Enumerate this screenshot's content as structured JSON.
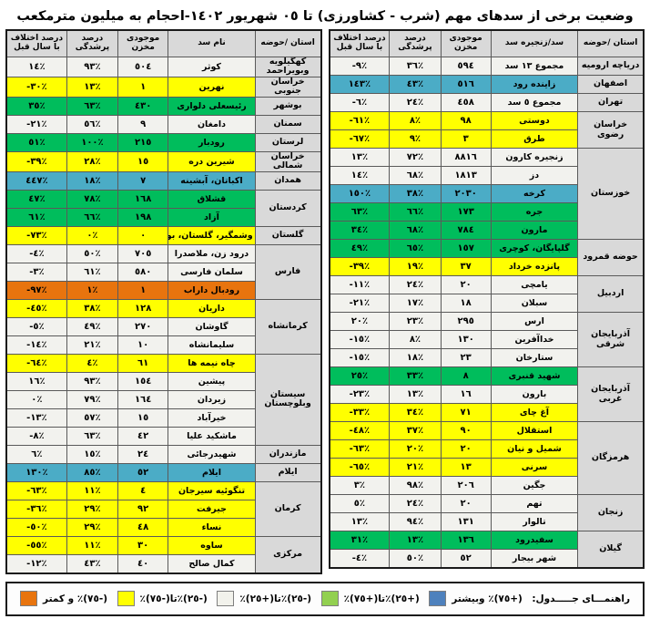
{
  "title": "وضعیت برخی از سدهای مهم (شرب - کشاورزی) تا ٠٥ شهریور ١٤٠٢-احجام به میلیون مترمکعب",
  "colors": {
    "header": "#d9d9d9",
    "white": "#f2f2ee",
    "yellow": "#ffff00",
    "green": "#00bd5c",
    "blue": "#4bacc6",
    "orange": "#e8740e"
  },
  "right_table": {
    "headers": [
      "استان /حوضه",
      "سد/زنجیره سد",
      "موجودی مخزن",
      "درصد پرشدگی",
      "درصد اختلاف با سال قبل"
    ],
    "groups": [
      {
        "province": "دریاچه ارومیه",
        "rows": [
          {
            "dam": "مجموع ١٣ سد",
            "stock": "٥٩٤",
            "fill": "٣٦٪",
            "diff": "-٩٪",
            "cat": "white"
          }
        ]
      },
      {
        "province": "اصفهان",
        "rows": [
          {
            "dam": "زاینده رود",
            "stock": "٥١٦",
            "fill": "٤٣٪",
            "diff": "١٤٣٪",
            "cat": "blue"
          }
        ]
      },
      {
        "province": "تهران",
        "rows": [
          {
            "dam": "مجموع ٥ سد",
            "stock": "٤٥٨",
            "fill": "٢٤٪",
            "diff": "-٦٪",
            "cat": "white"
          }
        ]
      },
      {
        "province": "خراسان رضوی",
        "rows": [
          {
            "dam": "دوستی",
            "stock": "٩٨",
            "fill": "٨٪",
            "diff": "-٦١٪",
            "cat": "yellow"
          },
          {
            "dam": "طرق",
            "stock": "٣",
            "fill": "٩٪",
            "diff": "-٦٧٪",
            "cat": "yellow"
          }
        ]
      },
      {
        "province": "خوزستان",
        "rows": [
          {
            "dam": "زنجیره کارون",
            "stock": "٨٨١٦",
            "fill": "٧٢٪",
            "diff": "١٣٪",
            "cat": "white"
          },
          {
            "dam": "دز",
            "stock": "١٨١٣",
            "fill": "٦٨٪",
            "diff": "١٤٪",
            "cat": "white"
          },
          {
            "dam": "کرخه",
            "stock": "٢٠٣٠",
            "fill": "٣٨٪",
            "diff": "١٥٠٪",
            "cat": "blue"
          },
          {
            "dam": "جره",
            "stock": "١٧٣",
            "fill": "٦٦٪",
            "diff": "٦٣٪",
            "cat": "green"
          },
          {
            "dam": "مارون",
            "stock": "٧٨٤",
            "fill": "٦٨٪",
            "diff": "٣٤٪",
            "cat": "green"
          }
        ]
      },
      {
        "province": "حوضه قمرود",
        "rows": [
          {
            "dam": "گلپایگان، کوچری",
            "stock": "١٥٧",
            "fill": "٦٥٪",
            "diff": "٤٩٪",
            "cat": "green"
          },
          {
            "dam": "پانزده خرداد",
            "stock": "٣٧",
            "fill": "١٩٪",
            "diff": "-٣٩٪",
            "cat": "yellow"
          }
        ]
      },
      {
        "province": "اردبیل",
        "rows": [
          {
            "dam": "یامچی",
            "stock": "٢٠",
            "fill": "٢٤٪",
            "diff": "-١١٪",
            "cat": "white"
          },
          {
            "dam": "سبلان",
            "stock": "١٨",
            "fill": "١٧٪",
            "diff": "-٢١٪",
            "cat": "white"
          }
        ]
      },
      {
        "province": "آذربایجان شرقی",
        "rows": [
          {
            "dam": "ارس",
            "stock": "٢٩٥",
            "fill": "٢٣٪",
            "diff": "٢٠٪",
            "cat": "white"
          },
          {
            "dam": "خداآفرین",
            "stock": "١٣٠",
            "fill": "٨٪",
            "diff": "-١٥٪",
            "cat": "white"
          },
          {
            "dam": "ستارخان",
            "stock": "٢٣",
            "fill": "١٨٪",
            "diff": "-١٥٪",
            "cat": "white"
          }
        ]
      },
      {
        "province": "آذربایجان غربی",
        "rows": [
          {
            "dam": "شهید قنبری",
            "stock": "٨",
            "fill": "٣٣٪",
            "diff": "٢٥٪",
            "cat": "green"
          },
          {
            "dam": "بارون",
            "stock": "١٦",
            "fill": "١٣٪",
            "diff": "-٢٣٪",
            "cat": "white"
          },
          {
            "dam": "آغ چای",
            "stock": "٧١",
            "fill": "٣٤٪",
            "diff": "-٣٣٪",
            "cat": "yellow"
          }
        ]
      },
      {
        "province": "هرمزگان",
        "rows": [
          {
            "dam": "استقلال",
            "stock": "٩٠",
            "fill": "٣٧٪",
            "diff": "-٤٨٪",
            "cat": "yellow"
          },
          {
            "dam": "شمیل و نیان",
            "stock": "٢٠",
            "fill": "٢٠٪",
            "diff": "-٦٣٪",
            "cat": "yellow"
          },
          {
            "dam": "سرنی",
            "stock": "١٣",
            "fill": "٢١٪",
            "diff": "-٦٥٪",
            "cat": "yellow"
          },
          {
            "dam": "جگین",
            "stock": "٢٠٦",
            "fill": "٩٨٪",
            "diff": "٣٪",
            "cat": "white"
          }
        ]
      },
      {
        "province": "زنجان",
        "rows": [
          {
            "dam": "تهم",
            "stock": "٢٠",
            "fill": "٢٤٪",
            "diff": "٥٪",
            "cat": "white"
          },
          {
            "dam": "تالوار",
            "stock": "١٣١",
            "fill": "٩٤٪",
            "diff": "١٣٪",
            "cat": "white"
          }
        ]
      },
      {
        "province": "گیلان",
        "rows": [
          {
            "dam": "سفیدرود",
            "stock": "١٣٦",
            "fill": "١٣٪",
            "diff": "٣١٪",
            "cat": "green"
          },
          {
            "dam": "شهر بیجار",
            "stock": "٥٢",
            "fill": "٥٠٪",
            "diff": "-٤٪",
            "cat": "white"
          }
        ]
      }
    ]
  },
  "left_table": {
    "headers": [
      "استان /حوضه",
      "نام سد",
      "موجودی مخزن",
      "درصد پرشدگی",
      "درصد اختلاف با سال قبل"
    ],
    "groups": [
      {
        "province": "کهگیلویه وبویراحمد",
        "rows": [
          {
            "dam": "کوثر",
            "stock": "٥٠٤",
            "fill": "٩٣٪",
            "diff": "١٤٪",
            "cat": "white"
          }
        ]
      },
      {
        "province": "خراسان جنوبی",
        "rows": [
          {
            "dam": "نهرین",
            "stock": "١",
            "fill": "١٣٪",
            "diff": "-٣٠٪",
            "cat": "yellow"
          }
        ]
      },
      {
        "province": "بوشهر",
        "rows": [
          {
            "dam": "رئیسعلی دلواری",
            "stock": "٤٣٠",
            "fill": "٦٣٪",
            "diff": "٣٥٪",
            "cat": "green"
          }
        ]
      },
      {
        "province": "سمنان",
        "rows": [
          {
            "dam": "دامغان",
            "stock": "٩",
            "fill": "٥٦٪",
            "diff": "-٢١٪",
            "cat": "white"
          }
        ]
      },
      {
        "province": "لرستان",
        "rows": [
          {
            "dam": "رودبار",
            "stock": "٢١٥",
            "fill": "١٠٠٪",
            "diff": "٥١٪",
            "cat": "green"
          }
        ]
      },
      {
        "province": "خراسان شمالی",
        "rows": [
          {
            "dam": "شیرین دره",
            "stock": "١٥",
            "fill": "٢٨٪",
            "diff": "-٣٩٪",
            "cat": "yellow"
          }
        ]
      },
      {
        "province": "همدان",
        "rows": [
          {
            "dam": "اکباتان، آبشینه",
            "stock": "٧",
            "fill": "١٨٪",
            "diff": "٤٤٧٪",
            "cat": "blue"
          }
        ]
      },
      {
        "province": "کردستان",
        "rows": [
          {
            "dam": "قشلاق",
            "stock": "١٦٨",
            "fill": "٧٨٪",
            "diff": "٤٧٪",
            "cat": "green"
          },
          {
            "dam": "آزاد",
            "stock": "١٩٨",
            "fill": "٦٦٪",
            "diff": "٦١٪",
            "cat": "green"
          }
        ]
      },
      {
        "province": "گلستان",
        "rows": [
          {
            "dam": "وشمگیر، گلستان، بوستان",
            "stock": "٠",
            "fill": "٠٪",
            "diff": "-٧٣٪",
            "cat": "yellow"
          }
        ]
      },
      {
        "province": "فارس",
        "rows": [
          {
            "dam": "درود زن، ملاصدرا",
            "stock": "٧٠٥",
            "fill": "٥٠٪",
            "diff": "-٤٪",
            "cat": "white"
          },
          {
            "dam": "سلمان فارسی",
            "stock": "٥٨٠",
            "fill": "٦١٪",
            "diff": "-٣٪",
            "cat": "white"
          },
          {
            "dam": "رودبال داراب",
            "stock": "١",
            "fill": "١٪",
            "diff": "-٩٧٪",
            "cat": "orange"
          }
        ]
      },
      {
        "province": "کرمانشاه",
        "rows": [
          {
            "dam": "داریان",
            "stock": "١٢٨",
            "fill": "٣٨٪",
            "diff": "-٤٥٪",
            "cat": "yellow"
          },
          {
            "dam": "گاوشان",
            "stock": "٢٧٠",
            "fill": "٤٩٪",
            "diff": "-٥٪",
            "cat": "white"
          },
          {
            "dam": "سلیمانشاه",
            "stock": "١٠",
            "fill": "٢١٪",
            "diff": "-١٤٪",
            "cat": "white"
          }
        ]
      },
      {
        "province": "سیستان وبلوچستان",
        "rows": [
          {
            "dam": "چاه نیمه ها",
            "stock": "٦١",
            "fill": "٤٪",
            "diff": "-٦٤٪",
            "cat": "yellow"
          },
          {
            "dam": "پیشین",
            "stock": "١٥٤",
            "fill": "٩٣٪",
            "diff": "١٦٪",
            "cat": "white"
          },
          {
            "dam": "زیردان",
            "stock": "١٦٤",
            "fill": "٧٩٪",
            "diff": "٠٪",
            "cat": "white"
          },
          {
            "dam": "خیرآباد",
            "stock": "١٥",
            "fill": "٥٧٪",
            "diff": "-١٣٪",
            "cat": "white"
          },
          {
            "dam": "ماشکید علیا",
            "stock": "٤٢",
            "fill": "٦٣٪",
            "diff": "-٨٪",
            "cat": "white"
          }
        ]
      },
      {
        "province": "مازندران",
        "rows": [
          {
            "dam": "شهیدرجائی",
            "stock": "٢٤",
            "fill": "١٥٪",
            "diff": "٦٪",
            "cat": "white"
          }
        ]
      },
      {
        "province": "ایلام",
        "rows": [
          {
            "dam": "ایلام",
            "stock": "٥٢",
            "fill": "٨٥٪",
            "diff": "١٣٠٪",
            "cat": "blue"
          }
        ]
      },
      {
        "province": "کرمان",
        "rows": [
          {
            "dam": "تنگوئیه سیرجان",
            "stock": "٤",
            "fill": "١١٪",
            "diff": "-٦٣٪",
            "cat": "yellow"
          },
          {
            "dam": "جیرفت",
            "stock": "٩٢",
            "fill": "٢٩٪",
            "diff": "-٣٦٪",
            "cat": "yellow"
          },
          {
            "dam": "نساء",
            "stock": "٤٨",
            "fill": "٢٩٪",
            "diff": "-٥٠٪",
            "cat": "yellow"
          }
        ]
      },
      {
        "province": "مرکزی",
        "rows": [
          {
            "dam": "ساوه",
            "stock": "٣٠",
            "fill": "١١٪",
            "diff": "-٥٥٪",
            "cat": "yellow"
          },
          {
            "dam": "کمال صالح",
            "stock": "٤٠",
            "fill": "٤٣٪",
            "diff": "-١٢٪",
            "cat": "white"
          }
        ]
      }
    ]
  },
  "legend": {
    "label": "راهنمـــای جـــــدول:",
    "items": [
      {
        "name": "plus75-and-more",
        "text": "(+٧٥)٪ وبیشتر",
        "color": "#4e81bd"
      },
      {
        "name": "plus25-to-plus75",
        "text": "(+٢٥)٪تا(+٧٥)٪",
        "color": "#92d050"
      },
      {
        "name": "minus25-to-plus25",
        "text": "(-٢٥)٪تا(+٢٥)٪",
        "color": "#f2f2ec"
      },
      {
        "name": "minus25-to-minus75",
        "text": "(-٢٥)٪تا(-٧٥)٪",
        "color": "#ffff00"
      },
      {
        "name": "minus75-and-less",
        "text": "(-٧٥)٪ و کمتر",
        "color": "#e8740e"
      }
    ]
  }
}
